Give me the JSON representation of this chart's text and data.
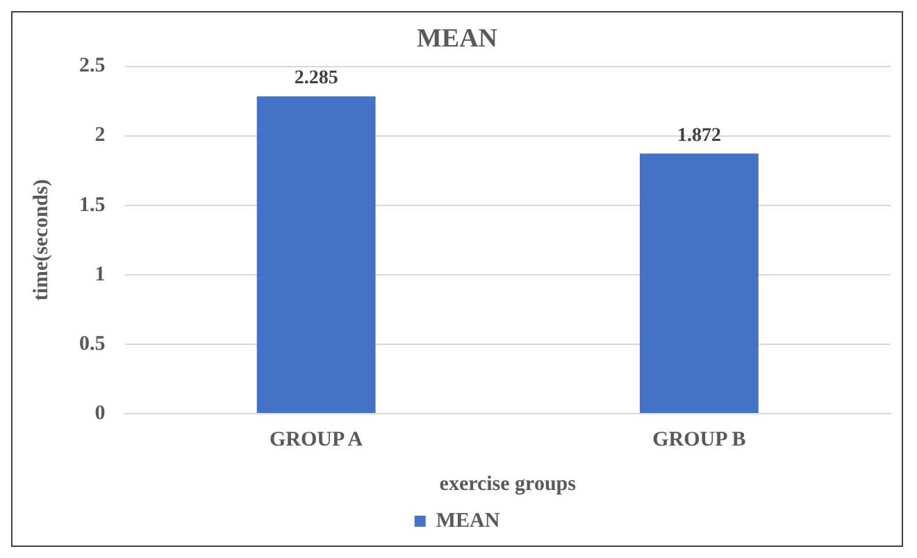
{
  "chart_data": {
    "type": "bar",
    "title": "MEAN",
    "xlabel": "exercise groups",
    "ylabel": "time(seconds)",
    "categories": [
      "GROUP A",
      "GROUP B"
    ],
    "series": [
      {
        "name": "MEAN",
        "color": "#4472c4",
        "values": [
          2.285,
          1.872
        ]
      }
    ],
    "ylim": [
      0,
      2.5
    ],
    "yticks": [
      0,
      0.5,
      1,
      1.5,
      2,
      2.5
    ],
    "grid": "y",
    "legend": "bottom",
    "data_labels": true
  }
}
